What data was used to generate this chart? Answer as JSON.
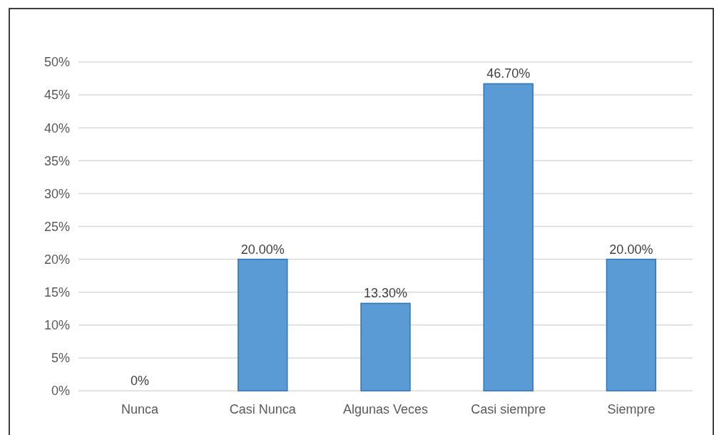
{
  "chart_data": {
    "type": "bar",
    "categories": [
      "Nunca",
      "Casi Nunca",
      "Algunas Veces",
      "Casi siempre",
      "Siempre"
    ],
    "values": [
      0,
      20,
      13.3,
      46.7,
      20
    ],
    "value_labels": [
      "0%",
      "20.00%",
      "13.30%",
      "46.70%",
      "20.00%"
    ],
    "color": "#5b9bd5",
    "ylim": [
      0,
      50
    ],
    "yticks": [
      {
        "value": 0,
        "label": "0%"
      },
      {
        "value": 5,
        "label": "5%"
      },
      {
        "value": 10,
        "label": "10%"
      },
      {
        "value": 15,
        "label": "15%"
      },
      {
        "value": 20,
        "label": "20%"
      },
      {
        "value": 25,
        "label": "25%"
      },
      {
        "value": 30,
        "label": "30%"
      },
      {
        "value": 35,
        "label": "35%"
      },
      {
        "value": 40,
        "label": "40%"
      },
      {
        "value": 45,
        "label": "45%"
      },
      {
        "value": 50,
        "label": "50%"
      }
    ],
    "grid": "y"
  }
}
